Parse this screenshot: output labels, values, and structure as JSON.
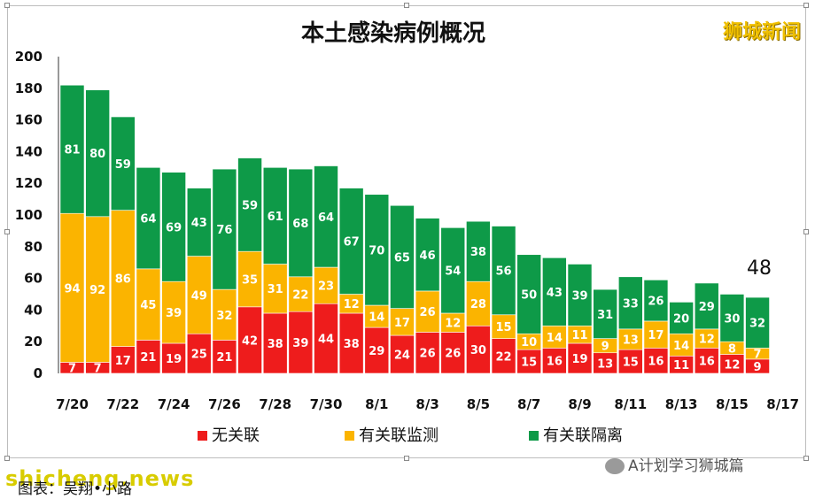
{
  "brand": "狮城新闻",
  "watermark_right": "A计划学习狮城篇",
  "watermark_left": "shicheng.news",
  "caption": "图表：吴翔•小路",
  "annotation": "48",
  "colors": {
    "unlinked": "#ee1c1c",
    "monitored": "#fbb400",
    "quarantined": "#0e9a48"
  },
  "chart_data": {
    "type": "bar",
    "stacked": true,
    "title": "本土感染病例概况",
    "xlabel": "",
    "ylabel": "",
    "ylim": [
      0,
      200
    ],
    "yticks": [
      0,
      20,
      40,
      60,
      80,
      100,
      120,
      140,
      160,
      180,
      200
    ],
    "categories": [
      "7/20",
      "7/21",
      "7/22",
      "7/23",
      "7/24",
      "7/25",
      "7/26",
      "7/27",
      "7/28",
      "7/29",
      "7/30",
      "7/31",
      "8/1",
      "8/2",
      "8/3",
      "8/4",
      "8/5",
      "8/6",
      "8/7",
      "8/8",
      "8/9",
      "8/10",
      "8/11",
      "8/12",
      "8/13",
      "8/14",
      "8/15",
      "8/16"
    ],
    "x_tick_labels": [
      "7/20",
      "7/22",
      "7/24",
      "7/26",
      "7/28",
      "7/30",
      "8/1",
      "8/3",
      "8/5",
      "8/7",
      "8/9",
      "8/11",
      "8/13",
      "8/15",
      "8/17"
    ],
    "series": [
      {
        "name": "无关联",
        "color": "#ee1c1c",
        "values": [
          7,
          7,
          17,
          21,
          19,
          25,
          21,
          42,
          38,
          39,
          44,
          38,
          29,
          24,
          26,
          26,
          30,
          22,
          15,
          16,
          19,
          13,
          15,
          16,
          11,
          16,
          12,
          9
        ]
      },
      {
        "name": "有关联监测",
        "color": "#fbb400",
        "values": [
          94,
          92,
          86,
          45,
          39,
          49,
          32,
          35,
          31,
          22,
          23,
          12,
          14,
          17,
          26,
          12,
          28,
          15,
          10,
          14,
          11,
          9,
          13,
          17,
          14,
          12,
          8,
          7
        ]
      },
      {
        "name": "有关联隔离",
        "color": "#0e9a48",
        "values": [
          81,
          80,
          59,
          64,
          69,
          43,
          76,
          59,
          61,
          68,
          64,
          67,
          70,
          65,
          46,
          54,
          38,
          56,
          50,
          43,
          39,
          31,
          33,
          26,
          20,
          29,
          30,
          32
        ]
      }
    ],
    "legend_position": "bottom",
    "grid": false
  }
}
